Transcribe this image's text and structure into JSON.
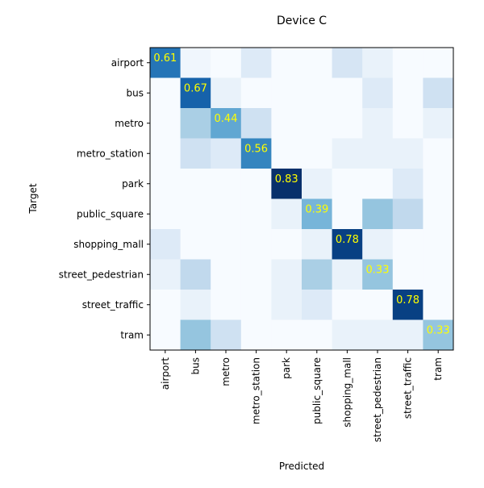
{
  "chart_data": {
    "type": "heatmap",
    "title": "Device C",
    "xlabel": "Predicted",
    "ylabel": "Target",
    "x_categories": [
      "airport",
      "bus",
      "metro",
      "metro_station",
      "park",
      "public_square",
      "shopping_mall",
      "street_pedestrian",
      "street_traffic",
      "tram"
    ],
    "y_categories": [
      "airport",
      "bus",
      "metro",
      "metro_station",
      "park",
      "public_square",
      "shopping_mall",
      "street_pedestrian",
      "street_traffic",
      "tram"
    ],
    "values": [
      [
        0.61,
        0.03,
        0.0,
        0.11,
        0.0,
        0.0,
        0.14,
        0.06,
        0.0,
        0.0
      ],
      [
        0.0,
        0.67,
        0.06,
        0.0,
        0.0,
        0.0,
        0.0,
        0.11,
        0.0,
        0.17
      ],
      [
        0.0,
        0.28,
        0.44,
        0.17,
        0.0,
        0.0,
        0.0,
        0.06,
        0.0,
        0.06
      ],
      [
        0.0,
        0.17,
        0.11,
        0.56,
        0.0,
        0.0,
        0.06,
        0.06,
        0.06,
        0.0
      ],
      [
        0.0,
        0.0,
        0.0,
        0.0,
        0.83,
        0.06,
        0.0,
        0.0,
        0.11,
        0.0
      ],
      [
        0.0,
        0.0,
        0.0,
        0.0,
        0.06,
        0.39,
        0.0,
        0.33,
        0.22,
        0.0
      ],
      [
        0.11,
        0.0,
        0.0,
        0.0,
        0.0,
        0.06,
        0.78,
        0.06,
        0.0,
        0.0
      ],
      [
        0.06,
        0.22,
        0.0,
        0.0,
        0.06,
        0.28,
        0.06,
        0.33,
        0.0,
        0.0
      ],
      [
        0.0,
        0.06,
        0.0,
        0.0,
        0.06,
        0.11,
        0.0,
        0.0,
        0.78,
        0.0
      ],
      [
        0.0,
        0.33,
        0.17,
        0.0,
        0.0,
        0.0,
        0.06,
        0.06,
        0.06,
        0.33
      ]
    ],
    "annotated_cells": [
      {
        "row": 0,
        "col": 0,
        "text": "0.61"
      },
      {
        "row": 1,
        "col": 1,
        "text": "0.67"
      },
      {
        "row": 2,
        "col": 2,
        "text": "0.44"
      },
      {
        "row": 3,
        "col": 3,
        "text": "0.56"
      },
      {
        "row": 4,
        "col": 4,
        "text": "0.83"
      },
      {
        "row": 5,
        "col": 5,
        "text": "0.39"
      },
      {
        "row": 6,
        "col": 6,
        "text": "0.78"
      },
      {
        "row": 7,
        "col": 7,
        "text": "0.33"
      },
      {
        "row": 8,
        "col": 8,
        "text": "0.78"
      },
      {
        "row": 9,
        "col": 9,
        "text": "0.33"
      }
    ],
    "colormap": "Blues",
    "vmin": 0,
    "vmax": 0.83,
    "annotation_color": "#ffff00",
    "grid": false
  }
}
